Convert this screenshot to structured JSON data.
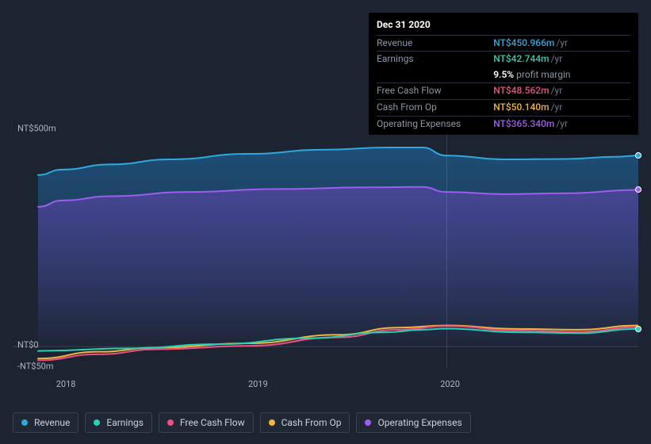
{
  "chart": {
    "type": "area",
    "background_color": "#1c2331",
    "y_axis": {
      "min_label": "-NT$50m",
      "zero_label": "NT$0",
      "max_label": "NT$500m",
      "min_value": -50,
      "zero_value": 0,
      "max_value": 500,
      "label_fontsize": 11,
      "label_color": "#aeb6c2"
    },
    "x_axis": {
      "ticks": [
        {
          "label": "2018",
          "t": 0.03
        },
        {
          "label": "2019",
          "t": 0.35
        },
        {
          "label": "2020",
          "t": 0.67
        }
      ],
      "label_fontsize": 11,
      "label_color": "#aeb6c2"
    },
    "guide_t": 0.68,
    "series": [
      {
        "key": "revenue",
        "name": "Revenue",
        "color": "#2fa8e0",
        "fill_from": "#1e4e77",
        "fill_to": "rgba(30,78,119,0.05)",
        "points": [
          {
            "t": 0.0,
            "v": 405
          },
          {
            "t": 0.04,
            "v": 418
          },
          {
            "t": 0.12,
            "v": 430
          },
          {
            "t": 0.22,
            "v": 442
          },
          {
            "t": 0.35,
            "v": 455
          },
          {
            "t": 0.48,
            "v": 465
          },
          {
            "t": 0.58,
            "v": 470
          },
          {
            "t": 0.64,
            "v": 470
          },
          {
            "t": 0.68,
            "v": 451
          },
          {
            "t": 0.78,
            "v": 442
          },
          {
            "t": 0.88,
            "v": 443
          },
          {
            "t": 0.96,
            "v": 448
          },
          {
            "t": 1.0,
            "v": 451
          }
        ]
      },
      {
        "key": "opex",
        "name": "Operating Expenses",
        "color": "#a05cf0",
        "fill_from": "rgba(120,70,200,0.45)",
        "fill_to": "rgba(120,70,200,0.02)",
        "points": [
          {
            "t": 0.0,
            "v": 330
          },
          {
            "t": 0.04,
            "v": 345
          },
          {
            "t": 0.12,
            "v": 355
          },
          {
            "t": 0.25,
            "v": 365
          },
          {
            "t": 0.4,
            "v": 372
          },
          {
            "t": 0.55,
            "v": 376
          },
          {
            "t": 0.64,
            "v": 377
          },
          {
            "t": 0.68,
            "v": 365
          },
          {
            "t": 0.78,
            "v": 360
          },
          {
            "t": 0.88,
            "v": 362
          },
          {
            "t": 1.0,
            "v": 370
          }
        ]
      },
      {
        "key": "cashop",
        "name": "Cash From Op",
        "color": "#f0b63c",
        "points": [
          {
            "t": 0.0,
            "v": -28
          },
          {
            "t": 0.1,
            "v": -12
          },
          {
            "t": 0.2,
            "v": -2
          },
          {
            "t": 0.35,
            "v": 8
          },
          {
            "t": 0.5,
            "v": 28
          },
          {
            "t": 0.6,
            "v": 45
          },
          {
            "t": 0.68,
            "v": 50
          },
          {
            "t": 0.8,
            "v": 42
          },
          {
            "t": 0.9,
            "v": 40
          },
          {
            "t": 1.0,
            "v": 50
          }
        ]
      },
      {
        "key": "fcf",
        "name": "Free Cash Flow",
        "color": "#ef4f84",
        "points": [
          {
            "t": 0.0,
            "v": -32
          },
          {
            "t": 0.1,
            "v": -18
          },
          {
            "t": 0.2,
            "v": -6
          },
          {
            "t": 0.35,
            "v": 2
          },
          {
            "t": 0.5,
            "v": 22
          },
          {
            "t": 0.6,
            "v": 40
          },
          {
            "t": 0.68,
            "v": 48.6
          },
          {
            "t": 0.8,
            "v": 38
          },
          {
            "t": 0.9,
            "v": 35
          },
          {
            "t": 1.0,
            "v": 46
          }
        ]
      },
      {
        "key": "earnings",
        "name": "Earnings",
        "color": "#29d0b2",
        "points": [
          {
            "t": 0.0,
            "v": -10
          },
          {
            "t": 0.15,
            "v": -4
          },
          {
            "t": 0.3,
            "v": 6
          },
          {
            "t": 0.45,
            "v": 20
          },
          {
            "t": 0.58,
            "v": 34
          },
          {
            "t": 0.64,
            "v": 40
          },
          {
            "t": 0.68,
            "v": 42.7
          },
          {
            "t": 0.8,
            "v": 34
          },
          {
            "t": 0.9,
            "v": 32
          },
          {
            "t": 1.0,
            "v": 42
          }
        ]
      }
    ],
    "end_markers": [
      {
        "series": "revenue",
        "t": 1.0,
        "v": 451,
        "fill": "#2fa8e0"
      },
      {
        "series": "opex",
        "t": 1.0,
        "v": 370,
        "fill": "#a05cf0"
      },
      {
        "series": "earnings",
        "t": 1.0,
        "v": 42,
        "fill": "#29d0b2"
      }
    ]
  },
  "tooltip": {
    "date": "Dec 31 2020",
    "rows": [
      {
        "label": "Revenue",
        "amount": "NT$450.966m",
        "unit": "/yr",
        "color": "#2fa8e0"
      },
      {
        "label": "Earnings",
        "amount": "NT$42.744m",
        "unit": "/yr",
        "color": "#29d0b2",
        "sub": {
          "pct": "9.5%",
          "text": "profit margin"
        }
      },
      {
        "label": "Free Cash Flow",
        "amount": "NT$48.562m",
        "unit": "/yr",
        "color": "#ef4f84"
      },
      {
        "label": "Cash From Op",
        "amount": "NT$50.140m",
        "unit": "/yr",
        "color": "#f0b63c"
      },
      {
        "label": "Operating Expenses",
        "amount": "NT$365.340m",
        "unit": "/yr",
        "color": "#a05cf0"
      }
    ]
  },
  "legend": [
    {
      "key": "revenue",
      "label": "Revenue",
      "color": "#2fa8e0"
    },
    {
      "key": "earnings",
      "label": "Earnings",
      "color": "#29d0b2"
    },
    {
      "key": "fcf",
      "label": "Free Cash Flow",
      "color": "#ef4f84"
    },
    {
      "key": "cashop",
      "label": "Cash From Op",
      "color": "#f0b63c"
    },
    {
      "key": "opex",
      "label": "Operating Expenses",
      "color": "#a05cf0"
    }
  ]
}
